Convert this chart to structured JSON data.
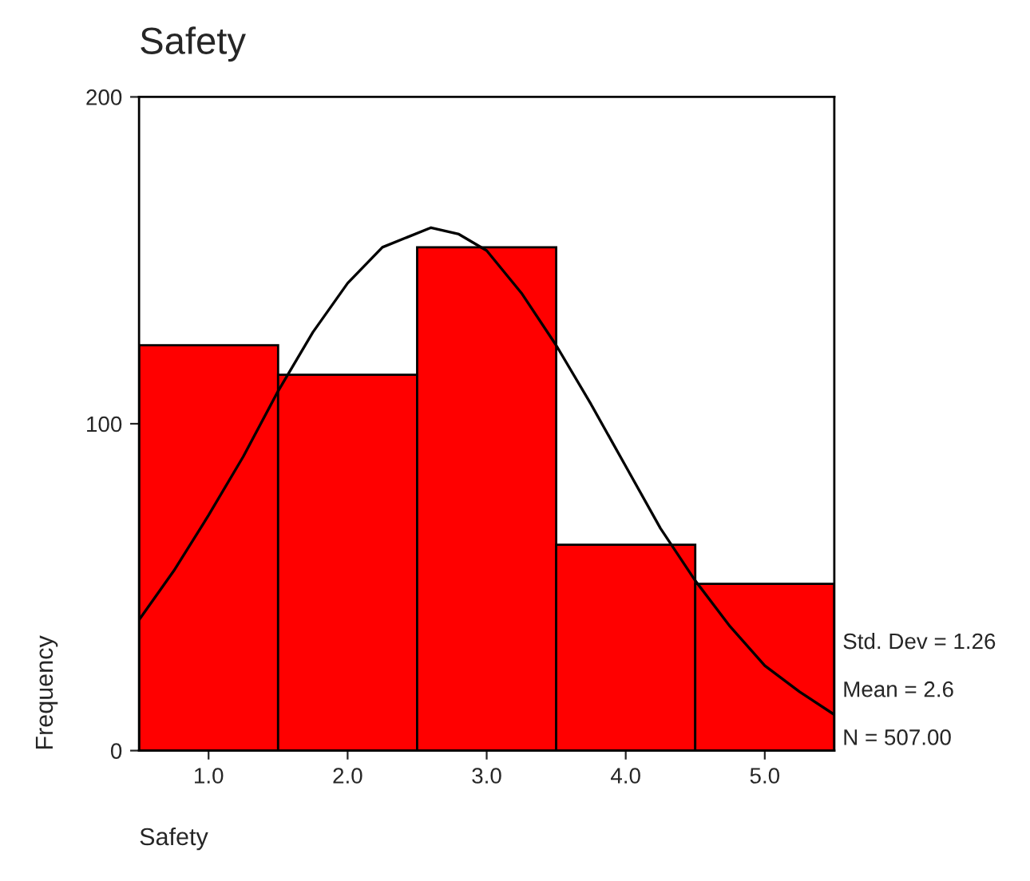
{
  "chart_data": {
    "type": "histogram",
    "title": "Safety",
    "xlabel": "Safety",
    "ylabel": "Frequency",
    "bins": [
      0.5,
      1.5,
      2.5,
      3.5,
      4.5,
      5.5
    ],
    "values": [
      124,
      115,
      154,
      63,
      51
    ],
    "color": "#ff0000",
    "series": [
      {
        "type": "line",
        "color": "#000000",
        "x": [
          0.5,
          0.75,
          1.0,
          1.25,
          1.5,
          1.75,
          2.0,
          2.25,
          2.6,
          2.8,
          3.0,
          3.25,
          3.5,
          3.75,
          4.0,
          4.25,
          4.5,
          4.75,
          5.0,
          5.25,
          5.5
        ],
        "values": [
          40,
          55,
          72,
          90,
          110,
          128,
          143,
          154,
          160,
          158,
          153,
          140,
          124,
          106,
          87,
          68,
          52,
          38,
          26,
          18,
          11
        ]
      }
    ],
    "xlim": [
      0.5,
      5.5
    ],
    "ylim": [
      0,
      200
    ],
    "xticks": [
      {
        "value": 1,
        "label": "1.0"
      },
      {
        "value": 2,
        "label": "2.0"
      },
      {
        "value": 3,
        "label": "3.0"
      },
      {
        "value": 4,
        "label": "4.0"
      },
      {
        "value": 5,
        "label": "5.0"
      }
    ],
    "yticks": [
      0,
      100,
      200
    ],
    "annotations": [
      "Std. Dev = 1.26",
      "Mean = 2.6",
      "N = 507.00"
    ],
    "grid": false,
    "legend": false
  }
}
